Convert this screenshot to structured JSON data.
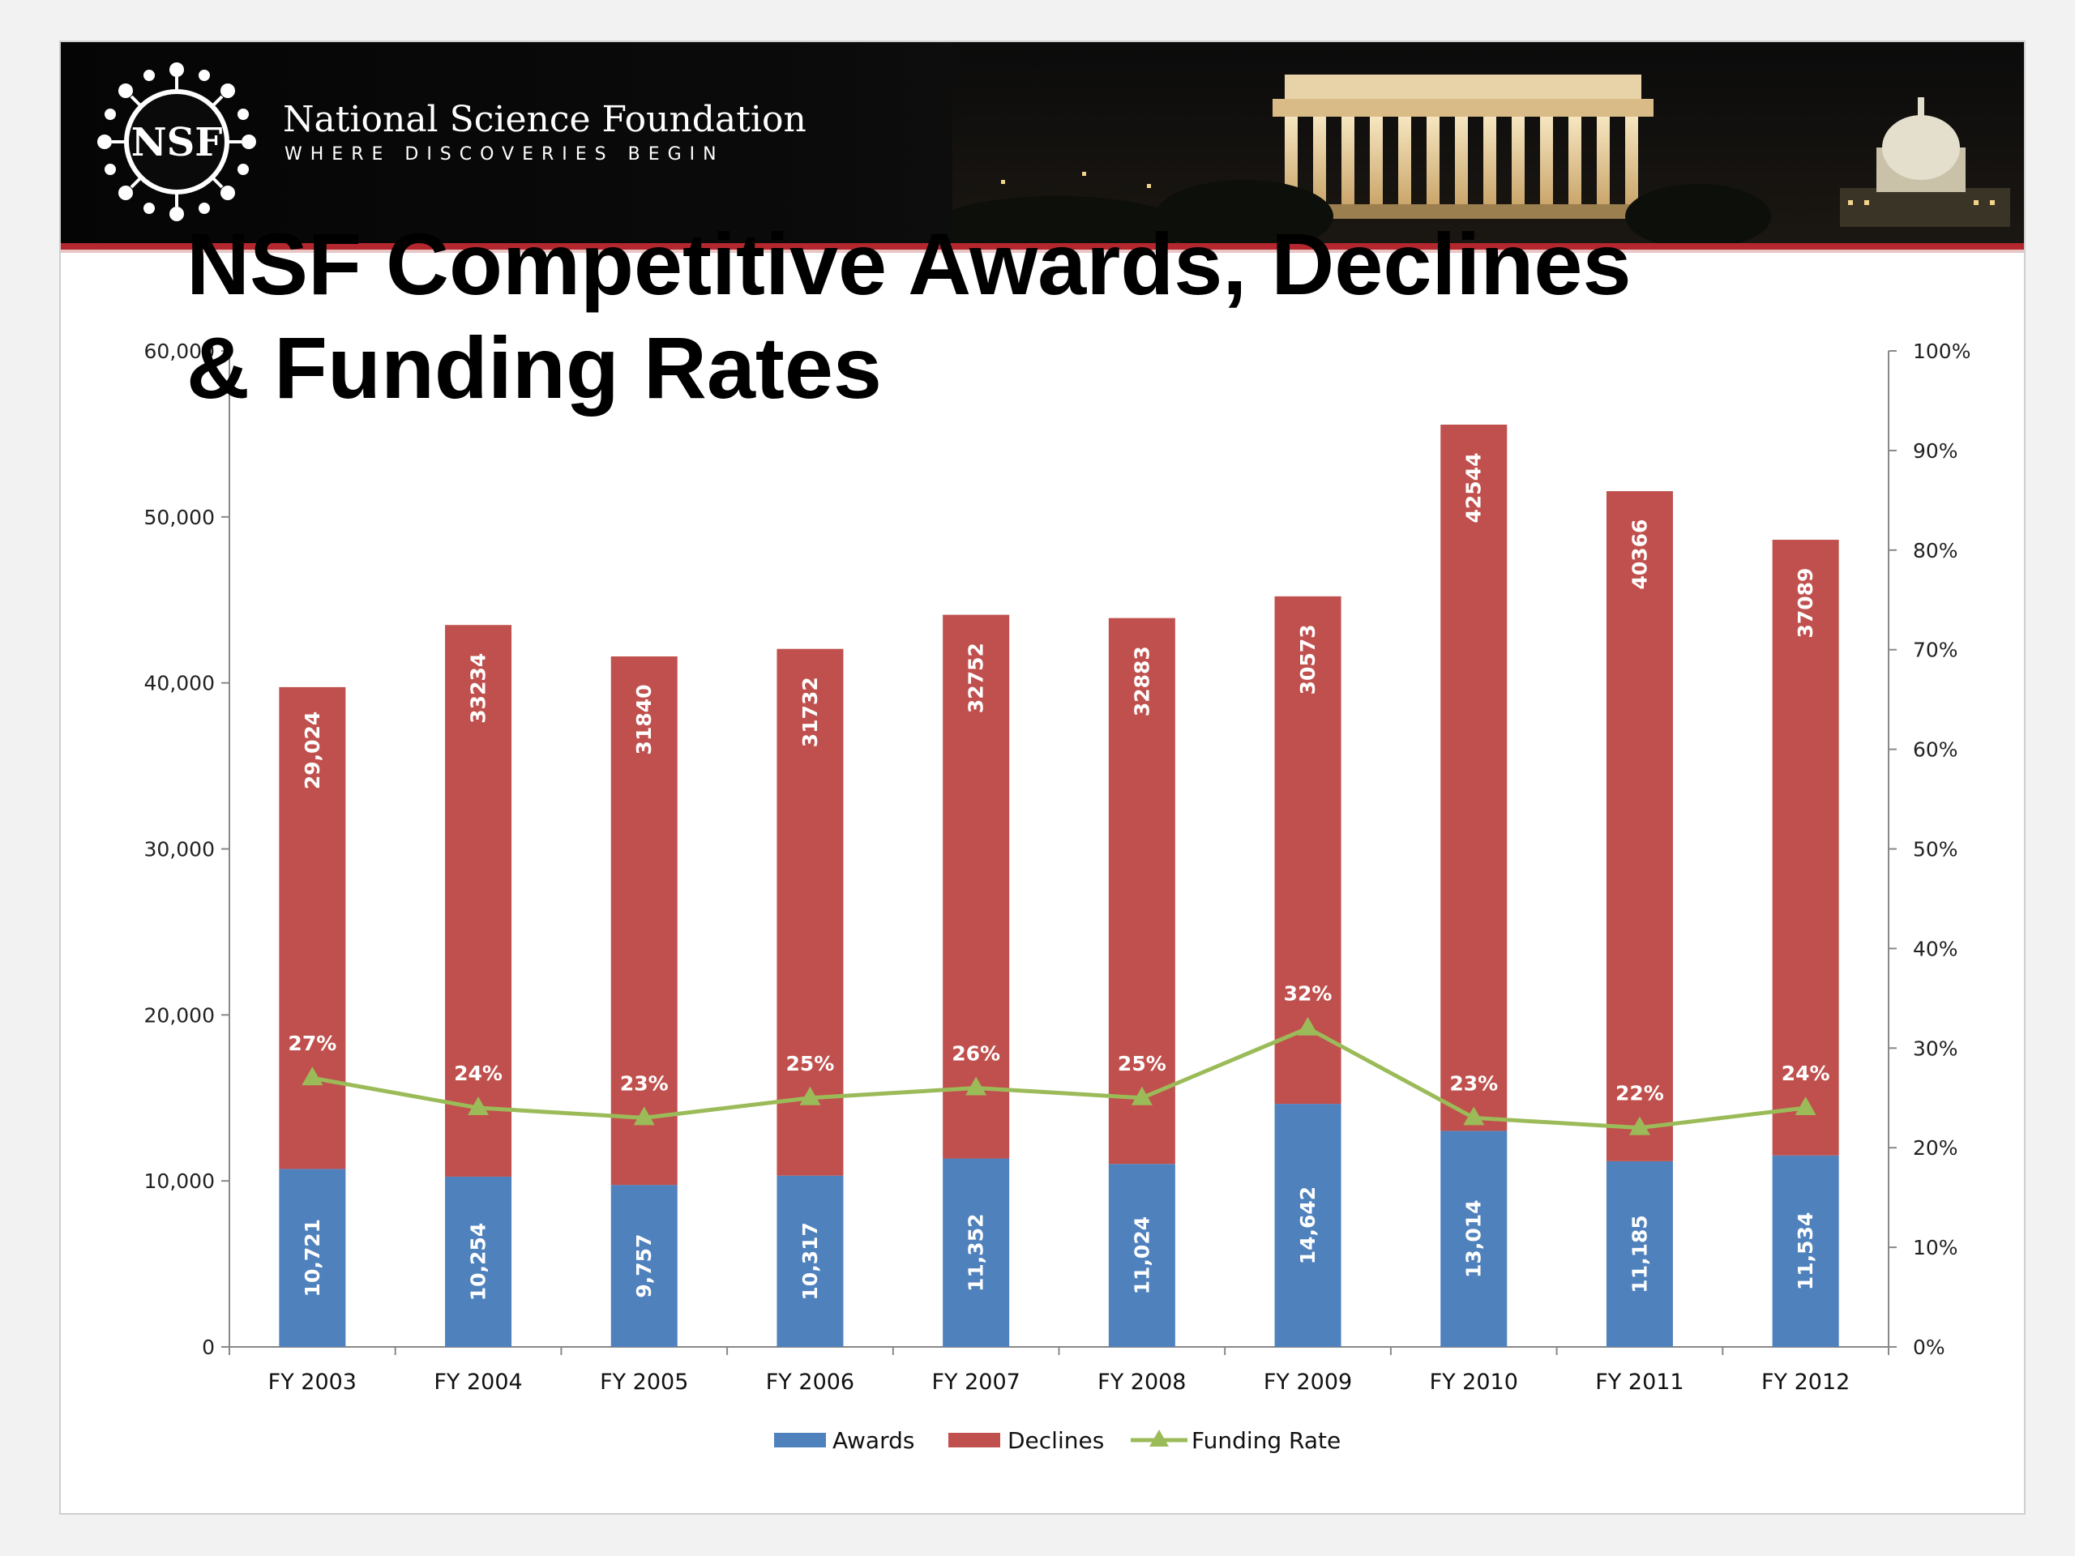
{
  "header": {
    "org_name": "National Science Foundation",
    "tagline": "WHERE DISCOVERIES BEGIN",
    "logo_text": "NSF"
  },
  "colors": {
    "awards": "#4f81bd",
    "declines": "#c0504d",
    "funding_rate": "#9bbb59",
    "banner_red": "#b5272e"
  },
  "chart_data": {
    "type": "bar",
    "stacked": true,
    "title_line1": "NSF Competitive Awards, Declines",
    "title_line2": "& Funding Rates",
    "categories": [
      "FY 2003",
      "FY 2004",
      "FY 2005",
      "FY 2006",
      "FY 2007",
      "FY 2008",
      "FY 2009",
      "FY 2010",
      "FY 2011",
      "FY 2012"
    ],
    "series": [
      {
        "name": "Awards",
        "axis": "left",
        "values": [
          10721,
          10254,
          9757,
          10317,
          11352,
          11024,
          14642,
          13014,
          11185,
          11534
        ],
        "labels": [
          "10,721",
          "10,254",
          "9,757",
          "10,317",
          "11,352",
          "11,024",
          "14,642",
          "13,014",
          "11,185",
          "11,534"
        ]
      },
      {
        "name": "Declines",
        "axis": "left",
        "values": [
          29024,
          33234,
          31840,
          31732,
          32752,
          32883,
          30573,
          42544,
          40366,
          37089
        ],
        "labels": [
          "29,024",
          "33234",
          "31840",
          "31732",
          "32752",
          "32883",
          "30573",
          "42544",
          "40366",
          "37089"
        ]
      },
      {
        "name": "Funding Rate",
        "type": "line",
        "axis": "right",
        "values": [
          27,
          24,
          23,
          25,
          26,
          25,
          32,
          23,
          22,
          24
        ],
        "labels": [
          "27%",
          "24%",
          "23%",
          "25%",
          "26%",
          "25%",
          "32%",
          "23%",
          "22%",
          "24%"
        ]
      }
    ],
    "y_left": {
      "range": [
        0,
        60000
      ],
      "ticks": [
        0,
        10000,
        20000,
        30000,
        40000,
        50000,
        60000
      ],
      "tick_labels": [
        "0",
        "10,000",
        "20,000",
        "30,000",
        "40,000",
        "50,000",
        "60,000"
      ]
    },
    "y_right": {
      "range": [
        0,
        100
      ],
      "ticks": [
        0,
        10,
        20,
        30,
        40,
        50,
        60,
        70,
        80,
        90,
        100
      ],
      "tick_labels": [
        "0%",
        "10%",
        "20%",
        "30%",
        "40%",
        "50%",
        "60%",
        "70%",
        "80%",
        "90%",
        "100%"
      ]
    },
    "legend": [
      "Awards",
      "Declines",
      "Funding Rate"
    ],
    "legend_position": "bottom",
    "grid": false
  }
}
